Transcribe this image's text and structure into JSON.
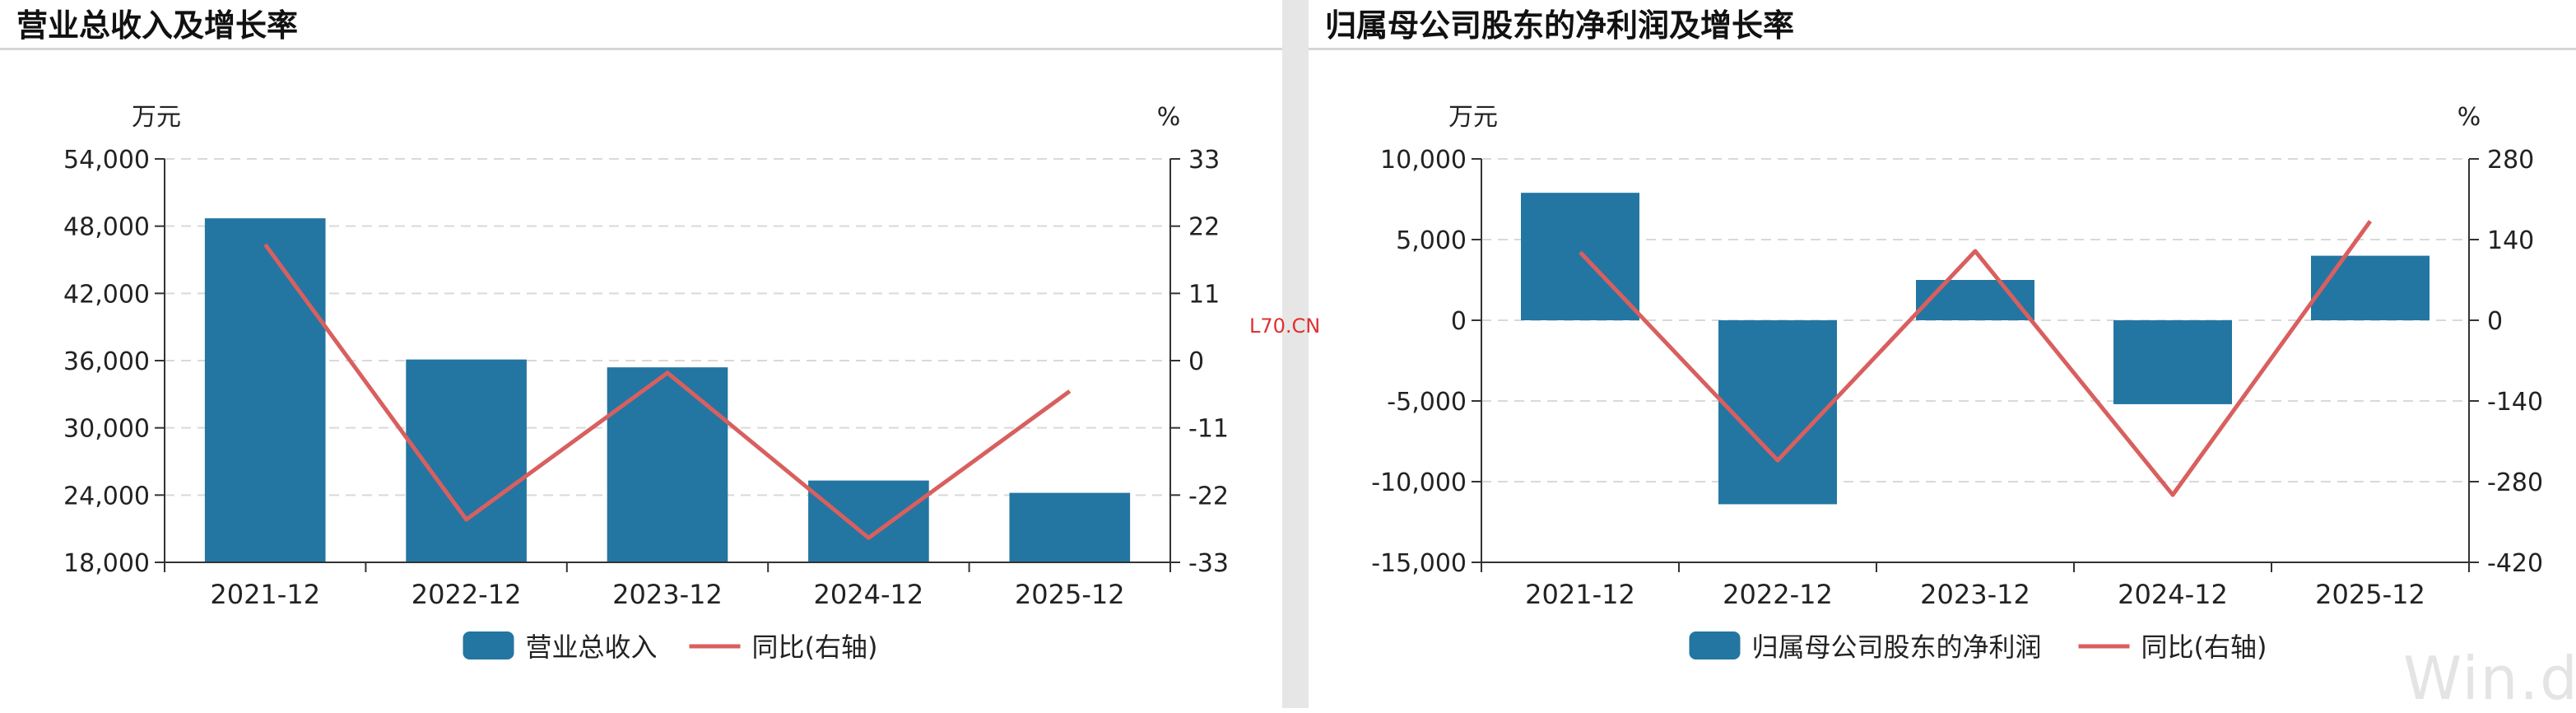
{
  "watermark_center": "L70.CN",
  "watermark_corner": "Win.d",
  "colors": {
    "bar": "#2376a2",
    "line": "#d95f5f",
    "grid": "#d9d9d9",
    "axis": "#333333"
  },
  "chart_data": [
    {
      "type": "bar",
      "title": "营业总收入及增长率",
      "left_unit": "万元",
      "right_unit": "%",
      "categories": [
        "2021-12",
        "2022-12",
        "2023-12",
        "2024-12",
        "2025-12"
      ],
      "left_ticks": [
        "54,000",
        "48,000",
        "42,000",
        "36,000",
        "30,000",
        "24,000",
        "18,000"
      ],
      "right_ticks": [
        "33",
        "22",
        "11",
        "0",
        "-11",
        "-22",
        "-33"
      ],
      "ylim_left": [
        18000,
        54000
      ],
      "ylim_right": [
        -33,
        33
      ],
      "grid": true,
      "legend_position": "bottom-center",
      "series": [
        {
          "name": "营业总收入",
          "type": "bar",
          "axis": "left",
          "values": [
            48700,
            36100,
            35400,
            25300,
            24200
          ]
        },
        {
          "name": "同比(右轴)",
          "type": "line",
          "axis": "right",
          "values": [
            19,
            -26,
            -2,
            -29,
            -5
          ]
        }
      ]
    },
    {
      "type": "bar",
      "title": "归属母公司股东的净利润及增长率",
      "left_unit": "万元",
      "right_unit": "%",
      "categories": [
        "2021-12",
        "2022-12",
        "2023-12",
        "2024-12",
        "2025-12"
      ],
      "left_ticks": [
        "10,000",
        "5,000",
        "0",
        "-5,000",
        "-10,000",
        "-15,000"
      ],
      "right_ticks": [
        "280",
        "140",
        "0",
        "-140",
        "-280",
        "-420"
      ],
      "ylim_left": [
        -15000,
        10000
      ],
      "ylim_right": [
        -420,
        280
      ],
      "grid": true,
      "legend_position": "bottom-center",
      "series": [
        {
          "name": "归属母公司股东的净利润",
          "type": "bar",
          "axis": "left",
          "values": [
            7900,
            -11400,
            2500,
            -5200,
            4000
          ]
        },
        {
          "name": "同比(右轴)",
          "type": "line",
          "axis": "right",
          "values": [
            118,
            -243,
            120,
            -303,
            172
          ]
        }
      ]
    }
  ]
}
